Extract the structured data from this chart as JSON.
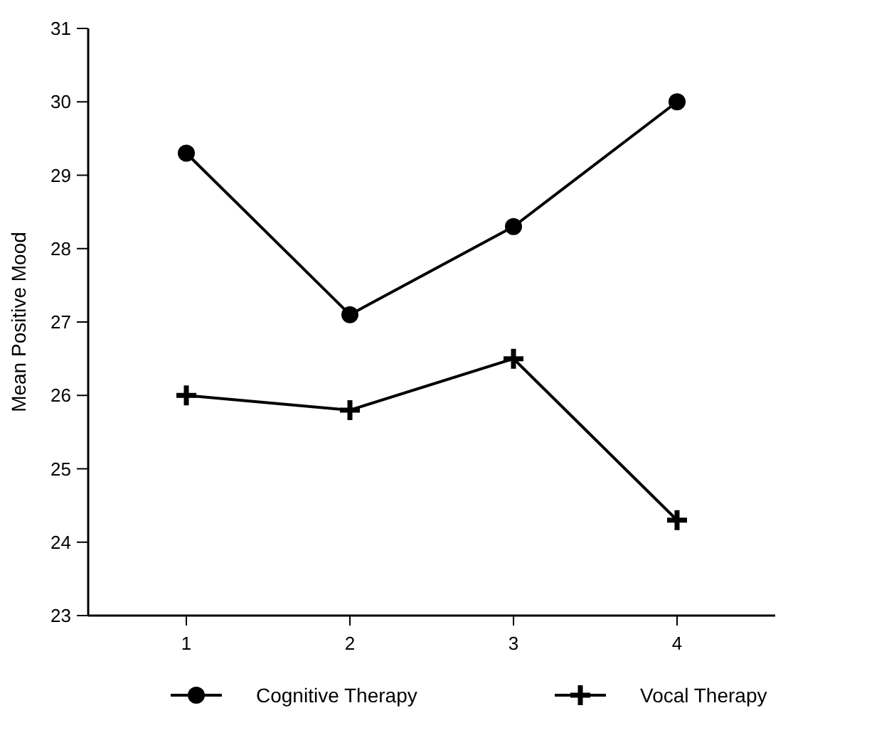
{
  "chart_data": {
    "type": "line",
    "ylabel": "Mean Positive Mood",
    "categories": [
      "1",
      "2",
      "3",
      "4"
    ],
    "series": [
      {
        "name": "Cognitive Therapy",
        "color": "#000000",
        "marker": "circle",
        "values": [
          29.3,
          27.1,
          28.3,
          30.0
        ]
      },
      {
        "name": "Vocal Therapy",
        "color": "#000000",
        "marker": "cross",
        "values": [
          26.0,
          25.8,
          26.5,
          24.3
        ]
      }
    ],
    "ylim": [
      23,
      31
    ],
    "yticks": [
      23,
      24,
      25,
      26,
      27,
      28,
      29,
      30,
      31
    ],
    "grid": false,
    "legend": "bottom",
    "line_style": "solid"
  }
}
